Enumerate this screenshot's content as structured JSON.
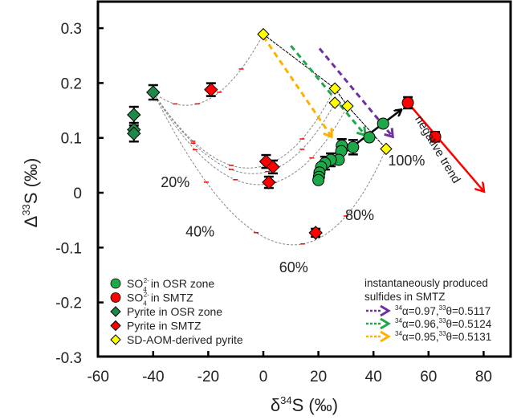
{
  "chart_data": {
    "type": "scatter",
    "title": "",
    "xlabel": "δ34S (‰)",
    "xlabel_parts": {
      "prefix": "δ",
      "sup": "34",
      "suffix": "S (‰)"
    },
    "ylabel": "Δ33S (‰)",
    "ylabel_parts": {
      "prefix": "Δ",
      "sup": "33",
      "suffix": "S (‰)"
    },
    "xlim": [
      -60,
      90
    ],
    "ylim": [
      -0.3,
      0.33
    ],
    "xticks": [
      -60,
      -40,
      -20,
      0,
      20,
      40,
      60,
      80
    ],
    "xtick_labels": [
      "-60",
      "-40",
      "-20",
      "0",
      "20",
      "40",
      "60",
      "80"
    ],
    "yticks": [
      -0.3,
      -0.2,
      -0.1,
      0,
      0.1,
      0.2,
      0.3
    ],
    "ytick_labels": [
      "-0.3",
      "-0.2",
      "-0.1",
      "0",
      "0.1",
      "0.2",
      "0.3"
    ],
    "grid": false,
    "series": [
      {
        "name": "SO42- in OSR zone",
        "marker": "circle",
        "color": "#1fa84a",
        "points": [
          [
            43.5,
            0.126
          ],
          [
            38.5,
            0.101
          ],
          [
            32.6,
            0.083
          ],
          [
            28.5,
            0.086
          ],
          [
            28.3,
            0.076
          ],
          [
            27.4,
            0.06
          ],
          [
            24.5,
            0.06
          ],
          [
            22.4,
            0.054
          ],
          [
            21,
            0.047
          ],
          [
            20.4,
            0.037
          ],
          [
            20.2,
            0.029
          ],
          [
            20,
            0.023
          ]
        ]
      },
      {
        "name": "SO42- in SMTZ",
        "marker": "circle",
        "color": "#ff0000",
        "points": [
          [
            52.5,
            0.164
          ],
          [
            62.4,
            0.102
          ]
        ]
      },
      {
        "name": "Pyrite in OSR zone",
        "marker": "diamond",
        "color": "#1e8a4a",
        "points": [
          [
            -47,
            0.142
          ],
          [
            -47,
            0.115
          ],
          [
            -47,
            0.108
          ],
          [
            -40,
            0.183
          ]
        ]
      },
      {
        "name": "Pyrite in SMTZ",
        "marker": "diamond",
        "color": "#ff0000",
        "points": [
          [
            -19,
            0.188
          ],
          [
            1,
            0.057
          ],
          [
            3.5,
            0.047
          ],
          [
            2,
            0.019
          ],
          [
            19,
            -0.073
          ]
        ]
      },
      {
        "name": "SD-AOM-derived pyrite",
        "marker": "diamond",
        "color": "#ffff00",
        "points": [
          [
            0,
            0.289
          ],
          [
            26,
            0.19
          ],
          [
            26,
            0.164
          ],
          [
            30.6,
            0.158
          ],
          [
            44.6,
            0.08
          ]
        ]
      }
    ],
    "mixing_curves": [
      {
        "from": [
          -40,
          0.183
        ],
        "via": [
          -20,
          0.17
        ],
        "to": [
          0,
          0.289
        ]
      },
      {
        "from": [
          -40,
          0.183
        ],
        "via": [
          -5,
          0.045
        ],
        "to": [
          26,
          0.19
        ]
      },
      {
        "from": [
          -40,
          0.183
        ],
        "via": [
          -5,
          0.035
        ],
        "to": [
          26,
          0.164
        ]
      },
      {
        "from": [
          -40,
          0.183
        ],
        "via": [
          -3,
          0.015
        ],
        "to": [
          30.6,
          0.158
        ]
      },
      {
        "from": [
          -40,
          0.183
        ],
        "via": [
          6,
          -0.092
        ],
        "to": [
          44.6,
          0.08
        ]
      }
    ],
    "percent_labels": [
      {
        "text": "20%",
        "x": -32,
        "y": 0.01
      },
      {
        "text": "40%",
        "x": -23,
        "y": -0.08
      },
      {
        "text": "60%",
        "x": 11,
        "y": -0.145
      },
      {
        "text": "80%",
        "x": 35,
        "y": -0.05
      },
      {
        "text": "100%",
        "x": 52,
        "y": 0.05
      }
    ],
    "arrows": [
      {
        "name": "alpha-0.97",
        "color": "#7030a0",
        "from": [
          20.4,
          0.263
        ],
        "to": [
          47,
          0.102
        ]
      },
      {
        "name": "alpha-0.96",
        "color": "#1fa84a",
        "from": [
          10,
          0.268
        ],
        "to": [
          37,
          0.105
        ]
      },
      {
        "name": "alpha-0.95",
        "color": "#ffb000",
        "from": [
          0,
          0.285
        ],
        "to": [
          24.8,
          0.102
        ]
      },
      {
        "name": "SO4-trend",
        "color": "#000000",
        "from": [
          20,
          0.037
        ],
        "to": [
          50,
          0.151
        ]
      },
      {
        "name": "negative-trend",
        "color": "#ff0000",
        "from": [
          52.5,
          0.164
        ],
        "to": [
          80,
          0.003
        ]
      }
    ],
    "annotations": {
      "negative_trend": "negative trend"
    },
    "legend": {
      "placement": "bottom-left",
      "entries": [
        {
          "pre": "SO",
          "sub": "4",
          "sup": "2-",
          "post": "in OSR zone",
          "marker": "circle",
          "color": "#1fa84a"
        },
        {
          "pre": "SO",
          "sub": "4",
          "sup": "2-",
          "post": "in SMTZ",
          "marker": "circle",
          "color": "#ff0000"
        },
        {
          "pre": "Pyrite in OSR  zone",
          "sub": "",
          "sup": "",
          "post": "",
          "marker": "diamond",
          "color": "#1e8a4a"
        },
        {
          "pre": "Pyrite in SMTZ",
          "sub": "",
          "sup": "",
          "post": "",
          "marker": "diamond",
          "color": "#ff0000"
        },
        {
          "pre": "SD-AOM-derived pyrite",
          "sub": "",
          "sup": "",
          "post": "",
          "marker": "diamond",
          "color": "#ffff00"
        }
      ]
    },
    "legend2": {
      "placement": "bottom-right",
      "title_line1": "instantaneously produced",
      "title_line2": "sulfides in SMTZ",
      "entries": [
        {
          "color": "#7030a0",
          "alpha": "α=0.97,",
          "theta": "θ=0.5117",
          "alpha_sup": "34",
          "theta_sup": "33"
        },
        {
          "color": "#1fa84a",
          "alpha": "α=0.96,",
          "theta": "θ=0.5124",
          "alpha_sup": "34",
          "theta_sup": "33"
        },
        {
          "color": "#ffb000",
          "alpha": "α=0.95,",
          "theta": "θ=0.5131",
          "alpha_sup": "34",
          "theta_sup": "33"
        }
      ]
    }
  }
}
